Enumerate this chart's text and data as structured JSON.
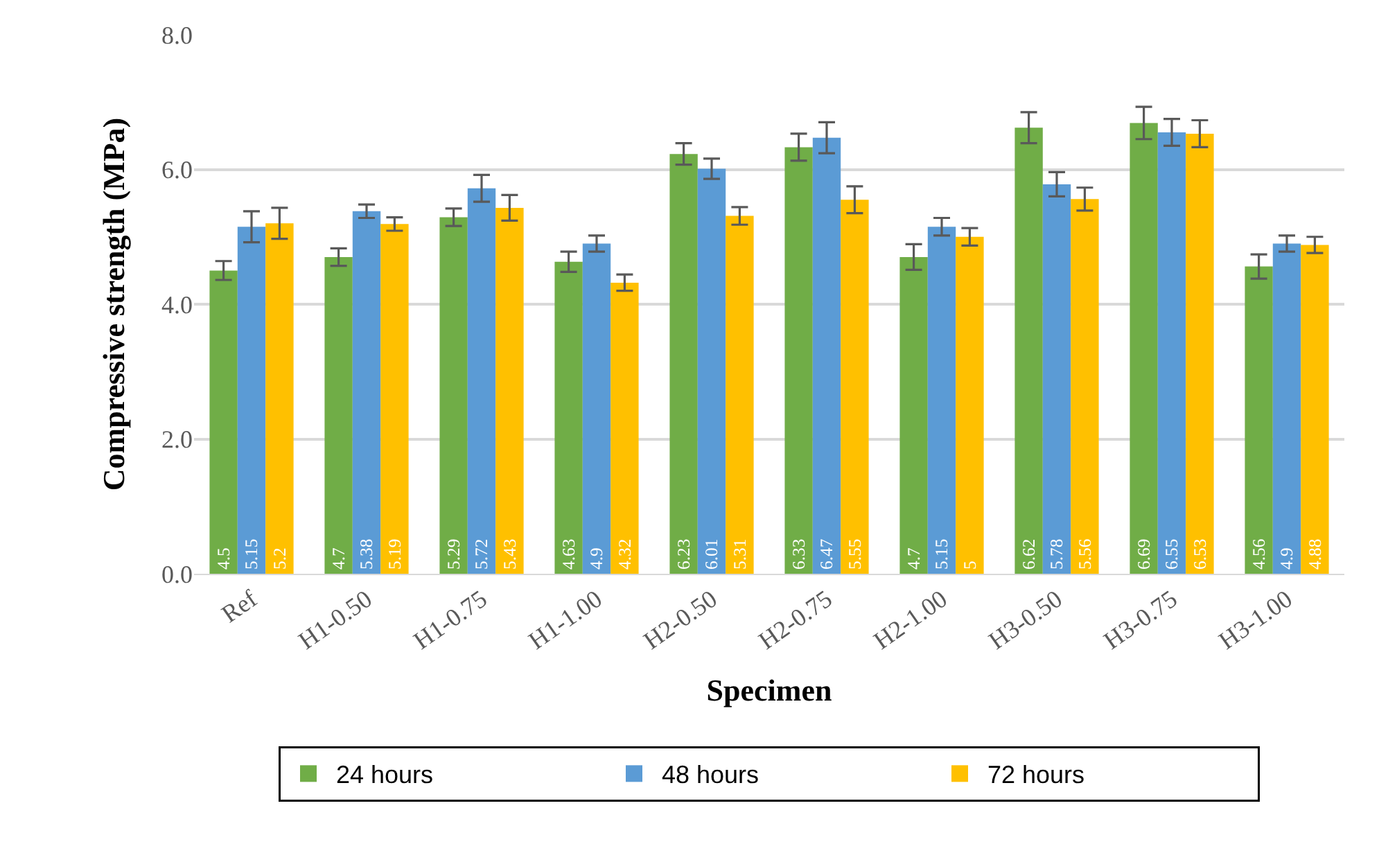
{
  "chart_data": {
    "type": "bar",
    "xlabel": "Specimen",
    "ylabel": "Compressive strength (MPa)",
    "categories": [
      "Ref",
      "H1-0.50",
      "H1-0.75",
      "H1-1.00",
      "H2-0.50",
      "H2-0.75",
      "H2-1.00",
      "H3-0.50",
      "H3-0.75",
      "H3-1.00"
    ],
    "series": [
      {
        "name": "24 hours",
        "color": "#70ad47",
        "values": [
          4.5,
          4.7,
          5.29,
          4.63,
          6.23,
          6.33,
          4.7,
          6.62,
          6.69,
          4.56
        ],
        "errors": [
          0.14,
          0.13,
          0.13,
          0.15,
          0.16,
          0.2,
          0.19,
          0.23,
          0.24,
          0.18
        ]
      },
      {
        "name": "48 hours",
        "color": "#5b9bd5",
        "values": [
          5.15,
          5.38,
          5.72,
          4.9,
          6.01,
          6.47,
          5.15,
          5.78,
          6.55,
          4.9
        ],
        "errors": [
          0.23,
          0.1,
          0.2,
          0.12,
          0.15,
          0.23,
          0.13,
          0.18,
          0.2,
          0.12
        ]
      },
      {
        "name": "72 hours",
        "color": "#ffc000",
        "values": [
          5.2,
          5.19,
          5.43,
          4.32,
          5.31,
          5.55,
          5,
          5.56,
          6.53,
          4.88
        ],
        "errors": [
          0.23,
          0.1,
          0.19,
          0.12,
          0.13,
          0.2,
          0.13,
          0.17,
          0.2,
          0.12
        ]
      }
    ],
    "ylim": [
      0,
      8
    ],
    "yticks": [
      {
        "value": 0,
        "label": "0.0"
      },
      {
        "value": 2,
        "label": "2.0"
      },
      {
        "value": 4,
        "label": "4.0"
      },
      {
        "value": 6,
        "label": "6.0"
      },
      {
        "value": 8,
        "label": "8.0"
      }
    ],
    "grid": "y",
    "legend": "bottom",
    "data_labels": true
  }
}
